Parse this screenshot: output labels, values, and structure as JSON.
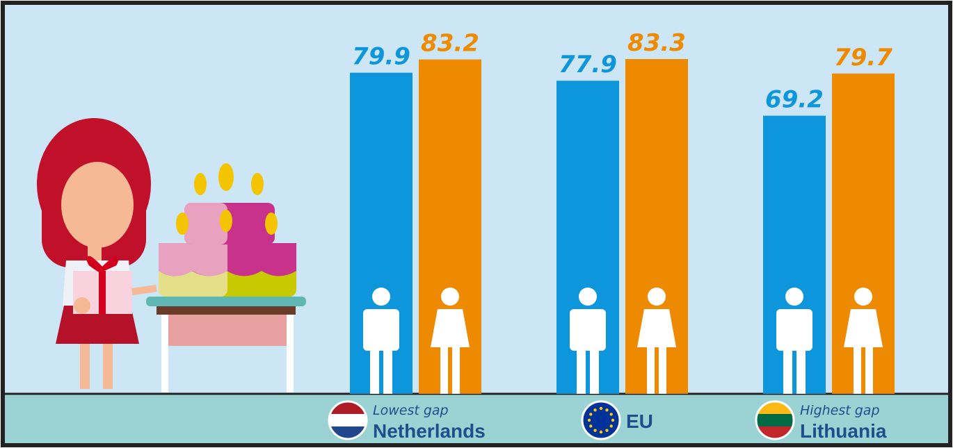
{
  "chart_data": {
    "type": "bar",
    "categories": [
      "Netherlands",
      "EU",
      "Lithuania"
    ],
    "category_notes": [
      "Lowest gap",
      null,
      "Highest gap"
    ],
    "series": [
      {
        "color": "#0e96dc",
        "values": [
          79.9,
          77.9,
          69.2
        ]
      },
      {
        "color": "#ee8a00",
        "values": [
          83.2,
          83.3,
          79.7
        ]
      }
    ]
  }
}
